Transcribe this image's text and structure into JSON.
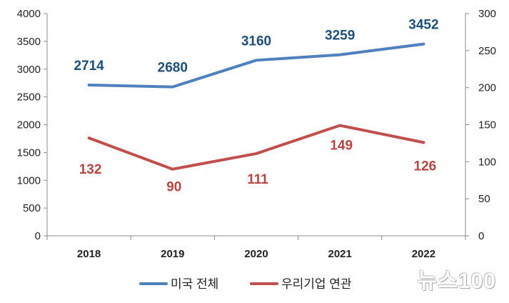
{
  "chart_data": {
    "type": "line",
    "categories": [
      "2018",
      "2019",
      "2020",
      "2021",
      "2022"
    ],
    "y_left": {
      "min": 0,
      "max": 4000,
      "step": 500
    },
    "y_right": {
      "min": 0,
      "max": 300,
      "step": 50
    },
    "series": [
      {
        "name": "미국 전체",
        "axis": "left",
        "color": "#4F81BD",
        "label_color": "#1F4E79",
        "values": [
          2714,
          2680,
          3160,
          3259,
          3452
        ]
      },
      {
        "name": "우리기업 연관",
        "axis": "right",
        "color": "#C0504D",
        "label_color": "#B94444",
        "values": [
          132,
          90,
          111,
          149,
          126
        ]
      }
    ],
    "grid": false,
    "legend_position": "bottom"
  },
  "watermark": "뉴스100"
}
